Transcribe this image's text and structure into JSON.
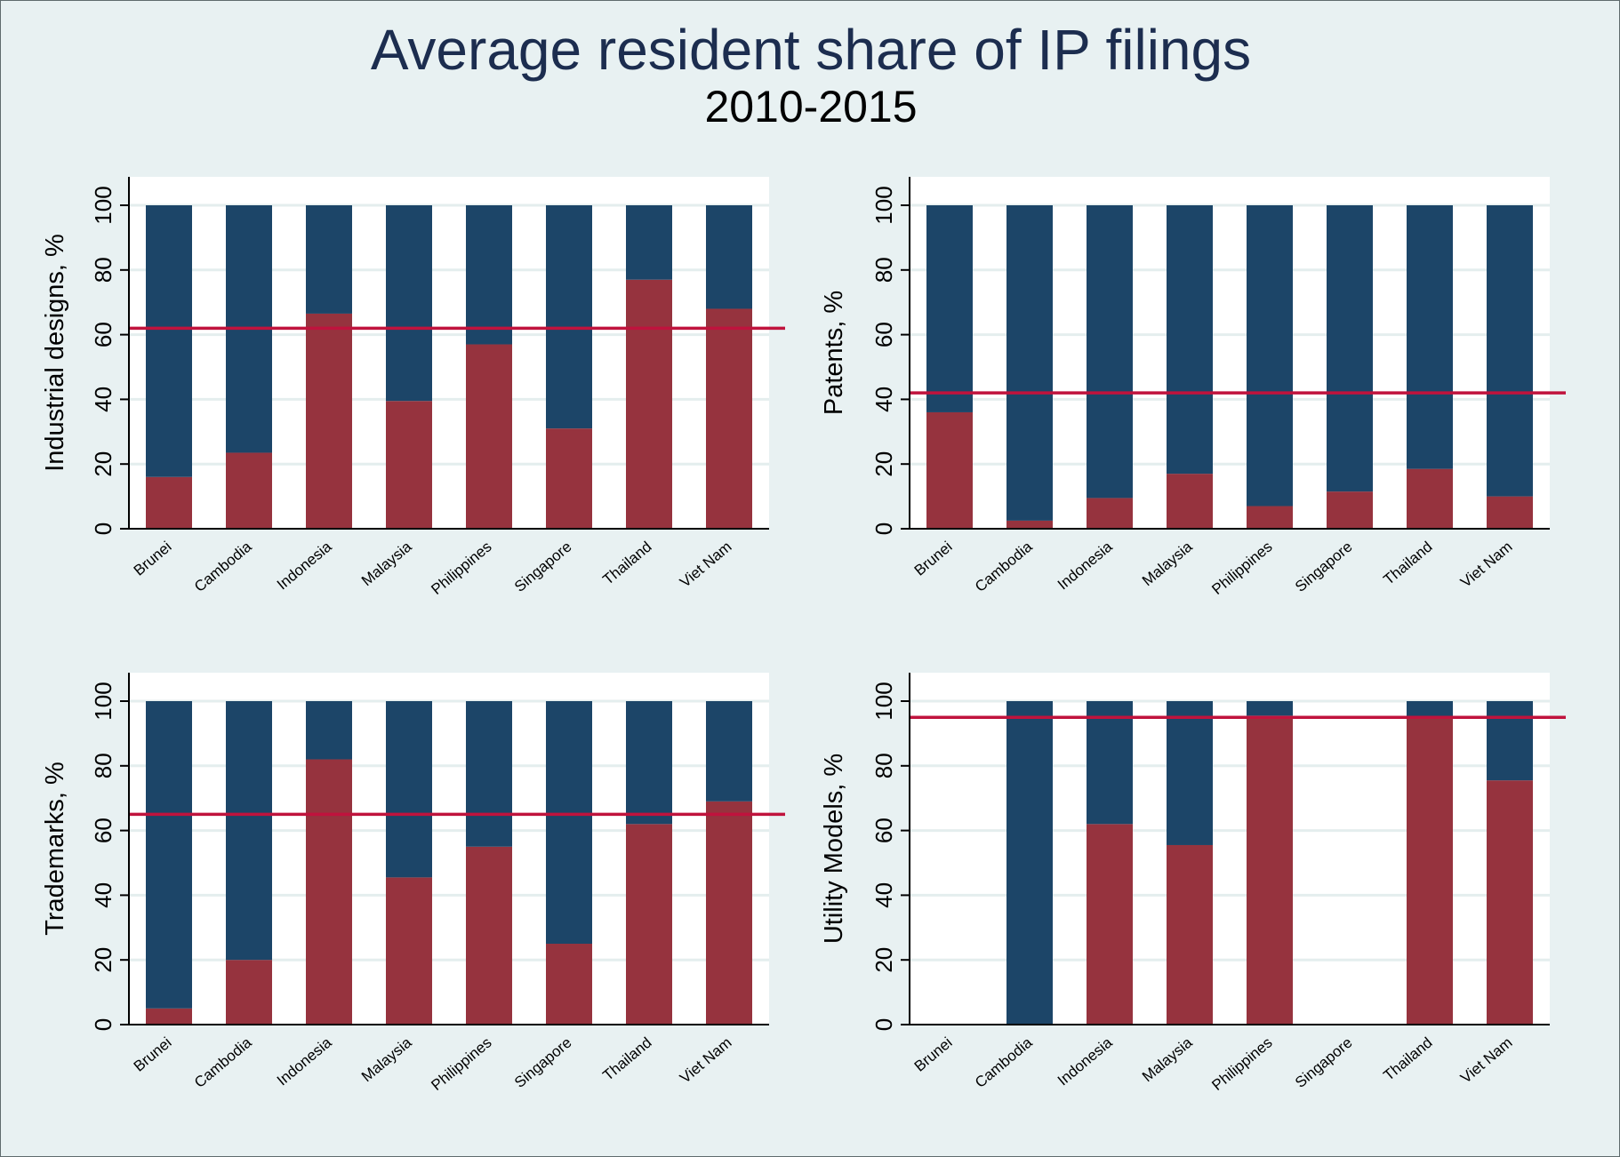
{
  "title": "Average resident share of IP filings",
  "subtitle": "2010-2015",
  "colors": {
    "background": "#e8f1f2",
    "plot_background": "#ffffff",
    "resident": "#96333e",
    "non_resident": "#1c4568",
    "average_line": "#c0133d",
    "gridline": "#e4eeee",
    "axis": "#000000"
  },
  "chart_data": [
    {
      "type": "bar",
      "stacked": true,
      "ylabel": "Industrial designs, %",
      "ylim": [
        0,
        100
      ],
      "yticks": [
        0,
        20,
        40,
        60,
        80,
        100
      ],
      "categories": [
        "Brunei",
        "Cambodia",
        "Indonesia",
        "Malaysia",
        "Philippines",
        "Singapore",
        "Thailand",
        "Viet Nam"
      ],
      "series": [
        {
          "values": [
            16,
            23.5,
            66.5,
            39.5,
            57,
            31,
            77,
            68
          ],
          "color": "#96333e"
        },
        {
          "values": [
            84,
            76.5,
            33.5,
            60.5,
            43,
            69,
            23,
            32
          ],
          "color": "#1c4568"
        }
      ],
      "reference_line": 62
    },
    {
      "type": "bar",
      "stacked": true,
      "ylabel": "Patents, %",
      "ylim": [
        0,
        100
      ],
      "yticks": [
        0,
        20,
        40,
        60,
        80,
        100
      ],
      "categories": [
        "Brunei",
        "Cambodia",
        "Indonesia",
        "Malaysia",
        "Philippines",
        "Singapore",
        "Thailand",
        "Viet Nam"
      ],
      "series": [
        {
          "values": [
            36,
            2.5,
            9.5,
            17,
            7,
            11.5,
            18.5,
            10
          ],
          "color": "#96333e"
        },
        {
          "values": [
            64,
            97.5,
            90.5,
            83,
            93,
            88.5,
            81.5,
            90
          ],
          "color": "#1c4568"
        }
      ],
      "reference_line": 42
    },
    {
      "type": "bar",
      "stacked": true,
      "ylabel": "Trademarks, %",
      "ylim": [
        0,
        100
      ],
      "yticks": [
        0,
        20,
        40,
        60,
        80,
        100
      ],
      "categories": [
        "Brunei",
        "Cambodia",
        "Indonesia",
        "Malaysia",
        "Philippines",
        "Singapore",
        "Thailand",
        "Viet Nam"
      ],
      "series": [
        {
          "values": [
            5,
            20,
            82,
            45.5,
            55,
            25,
            62,
            69
          ],
          "color": "#96333e"
        },
        {
          "values": [
            95,
            80,
            18,
            54.5,
            45,
            75,
            38,
            31
          ],
          "color": "#1c4568"
        }
      ],
      "reference_line": 65
    },
    {
      "type": "bar",
      "stacked": true,
      "ylabel": "Utility Models, %",
      "ylim": [
        0,
        100
      ],
      "yticks": [
        0,
        20,
        40,
        60,
        80,
        100
      ],
      "categories": [
        "Brunei",
        "Cambodia",
        "Indonesia",
        "Malaysia",
        "Philippines",
        "Singapore",
        "Thailand",
        "Viet Nam"
      ],
      "series": [
        {
          "values": [
            0,
            0,
            62,
            55.5,
            95.5,
            0,
            95,
            75.5
          ],
          "color": "#96333e"
        },
        {
          "values": [
            0,
            100,
            38,
            44.5,
            4.5,
            0,
            5,
            24.5
          ],
          "color": "#1c4568"
        }
      ],
      "reference_line": 95
    }
  ]
}
